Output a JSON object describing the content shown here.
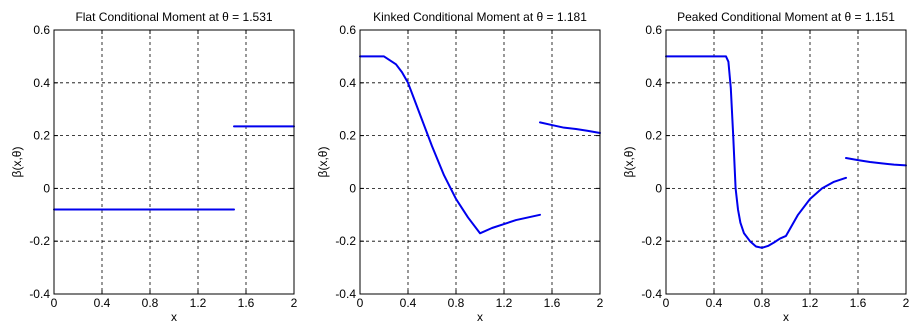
{
  "chart_data": [
    {
      "type": "line",
      "title": "Flat Conditional Moment at θ = 1.531",
      "xlabel": "x",
      "ylabel": "β(x,θ)",
      "xlim": [
        0,
        2
      ],
      "ylim": [
        -0.4,
        0.6
      ],
      "xticks": [
        "0",
        "0.4",
        "0.8",
        "1.2",
        "1.6",
        "2"
      ],
      "yticks": [
        "-0.4",
        "-0.2",
        "0",
        "0.2",
        "0.4",
        "0.6"
      ],
      "grid": true,
      "color": "#0000ee",
      "segments": [
        {
          "x": [
            0,
            1.5
          ],
          "y": [
            -0.08,
            -0.08
          ]
        },
        {
          "x": [
            1.5,
            2.0
          ],
          "y": [
            0.235,
            0.235
          ]
        }
      ]
    },
    {
      "type": "line",
      "title": "Kinked Conditional Moment at θ = 1.181",
      "xlabel": "x",
      "ylabel": "β(x,θ)",
      "xlim": [
        0,
        2
      ],
      "ylim": [
        -0.4,
        0.6
      ],
      "xticks": [
        "0",
        "0.4",
        "0.8",
        "1.2",
        "1.6",
        "2"
      ],
      "yticks": [
        "-0.4",
        "-0.2",
        "0",
        "0.2",
        "0.4",
        "0.6"
      ],
      "grid": true,
      "color": "#0000ee",
      "segments": [
        {
          "x": [
            0,
            0.2,
            0.3,
            0.35,
            0.4,
            0.45,
            0.5,
            0.6,
            0.7,
            0.8,
            0.9,
            1.0,
            1.1,
            1.2,
            1.3,
            1.4,
            1.5
          ],
          "y": [
            0.5,
            0.5,
            0.47,
            0.44,
            0.4,
            0.34,
            0.28,
            0.16,
            0.05,
            -0.04,
            -0.11,
            -0.17,
            -0.15,
            -0.135,
            -0.12,
            -0.11,
            -0.1
          ]
        },
        {
          "x": [
            1.5,
            1.6,
            1.7,
            1.8,
            1.9,
            2.0
          ],
          "y": [
            0.25,
            0.24,
            0.23,
            0.225,
            0.218,
            0.21
          ]
        }
      ]
    },
    {
      "type": "line",
      "title": "Peaked Conditional Moment at θ = 1.151",
      "xlabel": "x",
      "ylabel": "β(x,θ)",
      "xlim": [
        0,
        2
      ],
      "ylim": [
        -0.4,
        0.6
      ],
      "xticks": [
        "0",
        "0.4",
        "0.8",
        "1.2",
        "1.6",
        "2"
      ],
      "yticks": [
        "-0.4",
        "-0.2",
        "0",
        "0.2",
        "0.4",
        "0.6"
      ],
      "grid": true,
      "color": "#0000ee",
      "segments": [
        {
          "x": [
            0,
            0.5,
            0.52,
            0.54,
            0.56,
            0.58,
            0.6,
            0.62,
            0.65,
            0.7,
            0.75,
            0.8,
            0.85,
            0.9,
            0.95,
            1.0,
            1.1,
            1.2,
            1.3,
            1.4,
            1.5
          ],
          "y": [
            0.5,
            0.5,
            0.48,
            0.38,
            0.2,
            0.0,
            -0.08,
            -0.13,
            -0.17,
            -0.2,
            -0.22,
            -0.225,
            -0.218,
            -0.205,
            -0.19,
            -0.18,
            -0.1,
            -0.04,
            0.0,
            0.025,
            0.04
          ]
        },
        {
          "x": [
            1.5,
            1.6,
            1.7,
            1.8,
            1.9,
            2.0
          ],
          "y": [
            0.115,
            0.107,
            0.1,
            0.095,
            0.09,
            0.087
          ]
        }
      ]
    }
  ]
}
